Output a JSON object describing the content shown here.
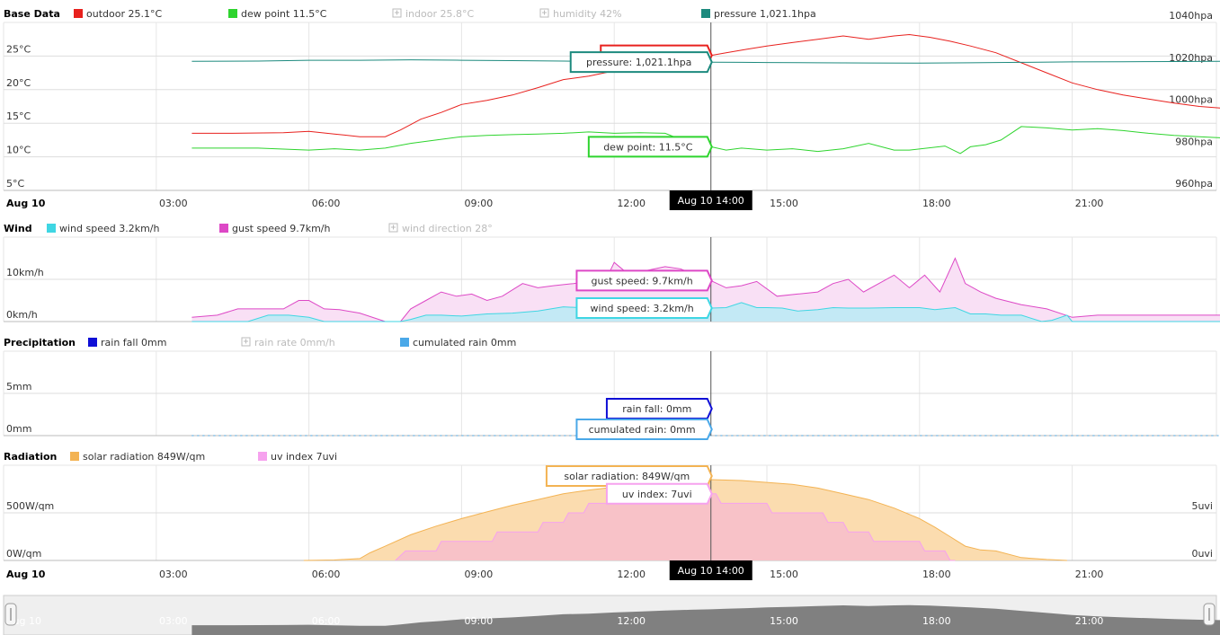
{
  "colors": {
    "outdoor": "#e8211e",
    "dew_point": "#2ed42e",
    "disabled": "#bbbbbb",
    "pressure": "#1d8a7e",
    "wind_speed": "#3fd6e3",
    "wind_speed_fill": "#c3e9f5",
    "gust_speed": "#dd48c6",
    "gust_fill": "#f9e0f5",
    "rain_fall": "#0f0fd6",
    "cumulated_rain": "#4aa8e8",
    "solar": "#f3b353",
    "solar_fill": "#fbdcaf",
    "uv": "#f6a2ee",
    "uv_fill": "#f8c2c8",
    "crosshair": "#555555",
    "navigator": "#808080"
  },
  "chart_data": [
    {
      "type": "line",
      "title": "Base Data",
      "x_axis_date": "Aug 10",
      "x_ticks": [
        "03:00",
        "06:00",
        "09:00",
        "12:00",
        "15:00",
        "18:00",
        "21:00"
      ],
      "crosshair": {
        "x": 13.9,
        "label": "Aug 10 14:00"
      },
      "y_left": {
        "ticks": [
          "5°C",
          "10°C",
          "15°C",
          "20°C",
          "25°C"
        ],
        "range": [
          5,
          30
        ]
      },
      "y_right": {
        "ticks": [
          "960hpa",
          "980hpa",
          "1000hpa",
          "1020hpa",
          "1040hpa"
        ],
        "range": [
          960,
          1040
        ]
      },
      "legend": [
        {
          "id": "outdoor",
          "label": "outdoor 25.1°C",
          "enabled": true,
          "icon": "color-box"
        },
        {
          "id": "dew_point",
          "label": "dew point 11.5°C",
          "enabled": true,
          "icon": "color-box"
        },
        {
          "id": "indoor",
          "label": "indoor 25.8°C",
          "enabled": false,
          "icon": "disabled-icon"
        },
        {
          "id": "humidity",
          "label": "humidity 42%",
          "enabled": false,
          "icon": "disabled-icon"
        },
        {
          "id": "pressure",
          "label": "pressure 1,021.1hpa",
          "enabled": true,
          "icon": "color-box"
        }
      ],
      "series": [
        {
          "id": "outdoor",
          "axis": "left",
          "x": [
            3.7,
            4.5,
            5.5,
            6.0,
            6.5,
            7.0,
            7.5,
            7.8,
            8.2,
            8.6,
            9.0,
            9.5,
            10.0,
            10.5,
            11.0,
            11.5,
            12.0,
            12.5,
            13.0,
            13.5,
            13.9,
            14.2,
            14.6,
            15.0,
            15.5,
            16.0,
            16.5,
            17.0,
            17.5,
            17.8,
            18.2,
            18.6,
            19.0,
            19.5,
            20.0,
            20.5,
            21.0,
            21.5,
            22.0,
            22.5,
            23.0,
            23.5,
            24.0
          ],
          "y": [
            13.5,
            13.5,
            13.6,
            13.8,
            13.4,
            13.0,
            13.0,
            14.0,
            15.6,
            16.6,
            17.8,
            18.4,
            19.2,
            20.3,
            21.5,
            22.0,
            22.8,
            23.5,
            24.2,
            24.8,
            25.1,
            25.5,
            26.0,
            26.5,
            27.0,
            27.5,
            28.0,
            27.5,
            28.0,
            28.2,
            27.8,
            27.2,
            26.5,
            25.5,
            24.0,
            22.5,
            21.0,
            20.0,
            19.2,
            18.6,
            18.0,
            17.5,
            17.2
          ]
        },
        {
          "id": "dew_point",
          "axis": "left",
          "x": [
            3.7,
            4.5,
            5.0,
            6.0,
            6.5,
            7.0,
            7.5,
            8.0,
            8.5,
            9.0,
            9.5,
            10.0,
            10.5,
            11.0,
            11.5,
            12.0,
            12.5,
            13.0,
            13.5,
            13.9,
            14.2,
            14.5,
            15.0,
            15.5,
            16.0,
            16.5,
            17.0,
            17.5,
            17.8,
            18.5,
            18.8,
            19.0,
            19.3,
            19.6,
            20.0,
            20.5,
            21.0,
            21.5,
            22.0,
            22.5,
            23.0,
            23.5,
            24.0
          ],
          "y": [
            11.3,
            11.3,
            11.3,
            11.0,
            11.2,
            11.0,
            11.3,
            12.0,
            12.5,
            13.0,
            13.2,
            13.3,
            13.4,
            13.5,
            13.7,
            13.5,
            13.6,
            13.5,
            12.0,
            11.5,
            11.0,
            11.3,
            11.0,
            11.2,
            10.8,
            11.2,
            12.0,
            11.0,
            11.0,
            11.6,
            10.5,
            11.5,
            11.8,
            12.5,
            14.5,
            14.3,
            14.0,
            14.2,
            13.9,
            13.5,
            13.2,
            13.0,
            12.8
          ]
        },
        {
          "id": "pressure",
          "axis": "right",
          "x": [
            3.7,
            5.0,
            6.0,
            7.0,
            8.0,
            9.0,
            10.0,
            11.0,
            12.0,
            13.0,
            13.9,
            14.5,
            15.0,
            16.0,
            17.0,
            18.0,
            19.0,
            20.0,
            21.0,
            22.0,
            23.0,
            24.0
          ],
          "y": [
            1021.5,
            1021.6,
            1022.0,
            1022.0,
            1022.2,
            1022.0,
            1021.8,
            1021.6,
            1021.4,
            1021.3,
            1021.1,
            1021.0,
            1020.9,
            1020.8,
            1020.7,
            1020.6,
            1020.8,
            1021.0,
            1021.2,
            1021.3,
            1021.4,
            1021.5
          ]
        }
      ],
      "tooltips": [
        {
          "series": "outdoor",
          "label": "outdoor: 25.1°C"
        },
        {
          "series": "pressure",
          "label": "pressure: 1,021.1hpa"
        },
        {
          "series": "dew_point",
          "label": "dew point: 11.5°C"
        }
      ]
    },
    {
      "type": "area",
      "title": "Wind",
      "crosshair": {
        "x": 13.9
      },
      "y_left": {
        "ticks": [
          "0km/h",
          "10km/h"
        ],
        "range": [
          0,
          20
        ]
      },
      "legend": [
        {
          "id": "wind_speed",
          "label": "wind speed 3.2km/h",
          "enabled": true,
          "icon": "color-box"
        },
        {
          "id": "gust_speed",
          "label": "gust speed 9.7km/h",
          "enabled": true,
          "icon": "color-box"
        },
        {
          "id": "wind_direction",
          "label": "wind direction 28°",
          "enabled": false,
          "icon": "disabled-icon"
        }
      ],
      "series": [
        {
          "id": "gust_speed",
          "x": [
            3.7,
            4.2,
            4.6,
            5.0,
            5.5,
            5.8,
            6.0,
            6.3,
            6.6,
            7.0,
            7.5,
            7.8,
            8.0,
            8.3,
            8.6,
            8.9,
            9.2,
            9.5,
            9.8,
            10.2,
            10.5,
            10.8,
            11.2,
            11.5,
            11.8,
            12.0,
            12.3,
            12.6,
            13.0,
            13.3,
            13.6,
            13.9,
            14.2,
            14.5,
            14.8,
            15.2,
            15.6,
            16.0,
            16.3,
            16.6,
            16.9,
            17.2,
            17.5,
            17.8,
            18.1,
            18.4,
            18.7,
            18.9,
            19.2,
            19.5,
            20.0,
            20.5,
            21.0,
            21.5,
            22.0,
            22.5,
            23.0,
            23.5,
            24.0
          ],
          "y": [
            1,
            1.5,
            3,
            3,
            3,
            5,
            5,
            3,
            2.8,
            2,
            0,
            0,
            3,
            5,
            7,
            6,
            6.5,
            5,
            6,
            9,
            8,
            8.5,
            9,
            9.5,
            9,
            14,
            11,
            12,
            13,
            12.5,
            11,
            9.7,
            8,
            8.5,
            9.5,
            6,
            6.5,
            7,
            9,
            10,
            7,
            9,
            11,
            8,
            11,
            7,
            15,
            9,
            7,
            5.5,
            4,
            3,
            1,
            1.5,
            1.5,
            1.5,
            1.5,
            1.5,
            1.5
          ]
        },
        {
          "id": "wind_speed",
          "x": [
            3.7,
            4.8,
            5.2,
            5.6,
            6.0,
            6.3,
            7.0,
            7.5,
            7.8,
            8.0,
            8.3,
            8.6,
            9.0,
            9.5,
            10.0,
            10.5,
            11.0,
            11.5,
            12.0,
            12.5,
            13.0,
            13.5,
            13.9,
            14.2,
            14.5,
            14.8,
            15.0,
            15.3,
            15.6,
            16.0,
            16.3,
            16.6,
            17.0,
            17.5,
            18.0,
            18.3,
            18.7,
            19.0,
            19.3,
            19.6,
            20.0,
            20.4,
            20.6,
            20.9,
            21.0,
            24.0
          ],
          "y": [
            0,
            0,
            1.5,
            1.5,
            1,
            0,
            0,
            0,
            0,
            0.5,
            1.5,
            1.5,
            1.3,
            1.8,
            2,
            2.5,
            3.5,
            3.2,
            3.5,
            3.2,
            3.4,
            3.5,
            3.2,
            3.3,
            4.5,
            3.3,
            3.3,
            3.2,
            2.5,
            2.8,
            3.3,
            3.2,
            3.2,
            3.3,
            3.3,
            2.8,
            3.3,
            1.8,
            1.8,
            1.5,
            1.5,
            0,
            0.3,
            1.5,
            0,
            0
          ]
        }
      ],
      "tooltips": [
        {
          "series": "gust_speed",
          "label": "gust speed: 9.7km/h"
        },
        {
          "series": "wind_speed",
          "label": "wind speed: 3.2km/h"
        }
      ]
    },
    {
      "type": "line",
      "title": "Precipitation",
      "crosshair": {
        "x": 13.9
      },
      "y_left": {
        "ticks": [
          "0mm",
          "5mm"
        ],
        "range": [
          0,
          10
        ]
      },
      "legend": [
        {
          "id": "rain_fall",
          "label": "rain fall 0mm",
          "enabled": true,
          "icon": "color-box"
        },
        {
          "id": "rain_rate",
          "label": "rain rate 0mm/h",
          "enabled": false,
          "icon": "disabled-icon"
        },
        {
          "id": "cumulated_rain",
          "label": "cumulated rain 0mm",
          "enabled": true,
          "icon": "color-box"
        }
      ],
      "series": [
        {
          "id": "rain_fall",
          "x": [
            3.7,
            24.0
          ],
          "y": [
            0,
            0
          ]
        },
        {
          "id": "cumulated_rain",
          "x": [
            3.7,
            24.0
          ],
          "y": [
            0,
            0
          ]
        }
      ],
      "tooltips": [
        {
          "series": "rain_fall",
          "label": "rain fall: 0mm"
        },
        {
          "series": "cumulated_rain",
          "label": "cumulated rain: 0mm"
        }
      ]
    },
    {
      "type": "area",
      "title": "Radiation",
      "x_axis_date": "Aug 10",
      "x_ticks": [
        "03:00",
        "06:00",
        "09:00",
        "12:00",
        "15:00",
        "18:00",
        "21:00"
      ],
      "crosshair": {
        "x": 13.9,
        "label": "Aug 10 14:00"
      },
      "y_left": {
        "ticks": [
          "0W/qm",
          "500W/qm"
        ],
        "range": [
          0,
          1000
        ]
      },
      "y_right": {
        "ticks": [
          "0uvi",
          "5uvi"
        ],
        "range": [
          0,
          10
        ]
      },
      "legend": [
        {
          "id": "solar",
          "label": "solar radiation 849W/qm",
          "enabled": true,
          "icon": "color-box"
        },
        {
          "id": "uv",
          "label": "uv index 7uvi",
          "enabled": true,
          "icon": "color-box"
        }
      ],
      "series": [
        {
          "id": "solar",
          "axis": "left",
          "x": [
            5.9,
            6.5,
            7.0,
            7.2,
            7.5,
            8.0,
            8.5,
            9.0,
            9.5,
            10.0,
            10.5,
            11.0,
            11.5,
            12.0,
            12.5,
            13.0,
            13.5,
            13.9,
            14.5,
            15.0,
            15.5,
            16.0,
            16.5,
            17.0,
            17.5,
            18.0,
            18.3,
            18.6,
            18.9,
            19.2,
            19.5,
            20.0,
            20.5,
            20.9
          ],
          "y": [
            0,
            5,
            20,
            80,
            150,
            270,
            360,
            440,
            510,
            580,
            640,
            700,
            740,
            770,
            800,
            820,
            840,
            849,
            840,
            820,
            800,
            760,
            700,
            640,
            550,
            440,
            350,
            250,
            150,
            110,
            100,
            30,
            10,
            0
          ]
        },
        {
          "id": "uv",
          "axis": "right",
          "x": [
            7.7,
            7.9,
            8.5,
            8.6,
            9.2,
            9.3,
            9.6,
            9.7,
            10.1,
            10.2,
            10.5,
            10.6,
            11.0,
            11.1,
            11.4,
            11.5,
            11.9,
            12.0,
            12.5,
            12.6,
            13.0,
            13.1,
            13.5,
            13.6,
            13.85,
            13.9,
            14.0,
            14.1,
            14.5,
            14.6,
            15.0,
            15.1,
            15.5,
            15.6,
            16.1,
            16.2,
            16.5,
            16.6,
            17.0,
            17.1,
            17.5,
            17.6,
            18.0,
            18.1,
            18.5,
            18.6,
            18.7
          ],
          "y": [
            0,
            1,
            1,
            2,
            2,
            2,
            2,
            3,
            3,
            3,
            3,
            4,
            4,
            5,
            5,
            6,
            6,
            6,
            6,
            7,
            7,
            8,
            8,
            8,
            8,
            7,
            7,
            6,
            6,
            6,
            6,
            5,
            5,
            5,
            5,
            4,
            4,
            3,
            3,
            2,
            2,
            2,
            2,
            1,
            1,
            0,
            0
          ]
        }
      ],
      "tooltips": [
        {
          "series": "solar",
          "label": "solar radiation: 849W/qm"
        },
        {
          "series": "uv",
          "label": "uv index: 7uvi"
        }
      ]
    }
  ],
  "navigator": {
    "x_ticks": [
      "Aug 10",
      "03:00",
      "06:00",
      "09:00",
      "12:00",
      "15:00",
      "18:00",
      "21:00"
    ],
    "outdoor_series_ref": "outdoor"
  }
}
